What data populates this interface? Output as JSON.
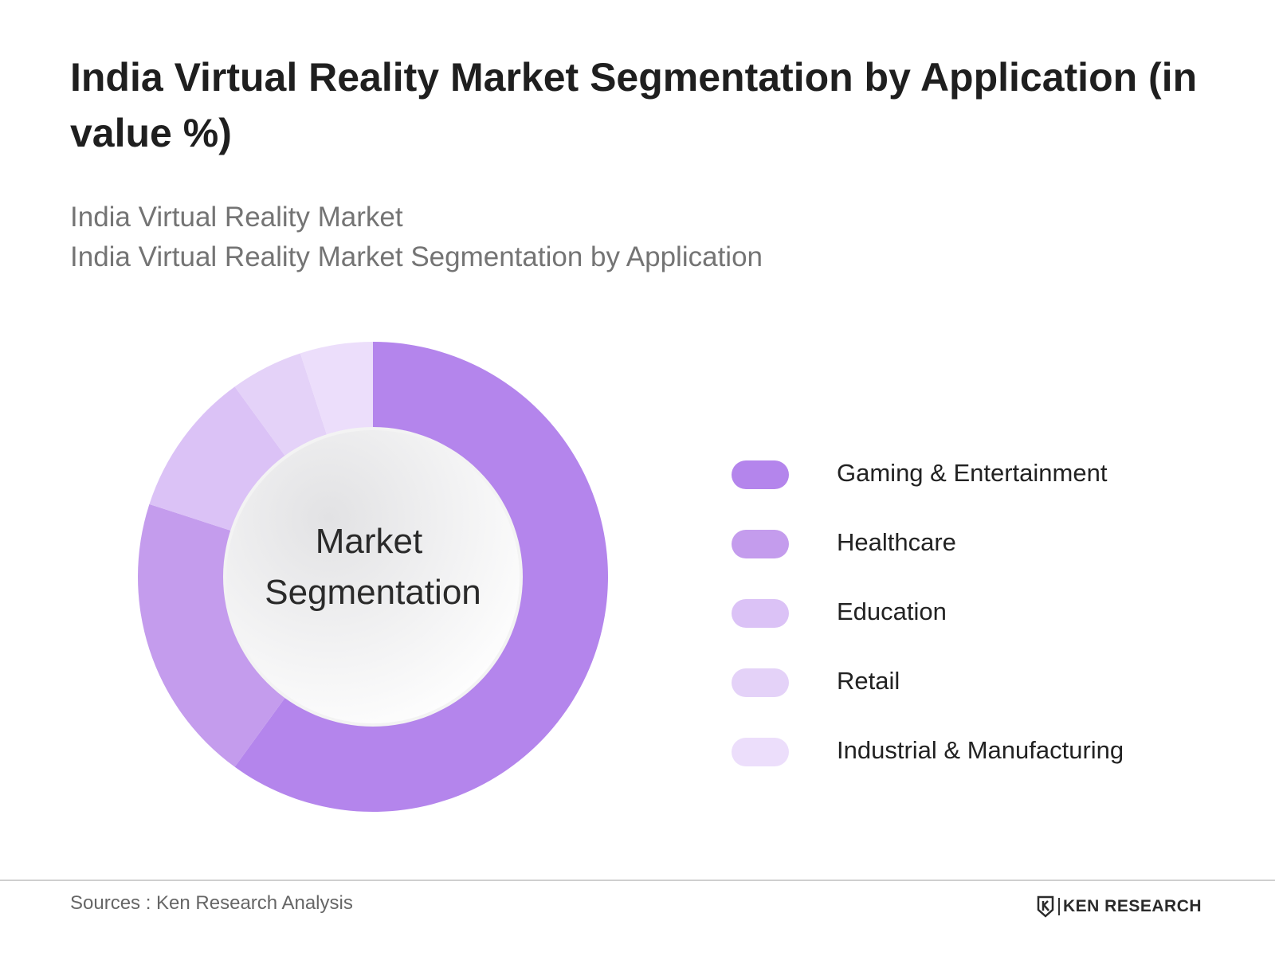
{
  "title": "India Virtual Reality Market Segmentation by Application (in value %)",
  "subtitle_line1": "India Virtual Reality Market",
  "subtitle_line2": "India Virtual Reality Market Segmentation by Application",
  "center_label_line1": "Market",
  "center_label_line2": "Segmentation",
  "sources": "Sources : Ken Research Analysis",
  "brand": "KEN RESEARCH",
  "chart_data": {
    "type": "pie",
    "title": "India Virtual Reality Market Segmentation by Application (in value %)",
    "legend_position": "right",
    "categories": [
      "Gaming & Entertainment",
      "Healthcare",
      "Education",
      "Retail",
      "Industrial & Manufacturing"
    ],
    "values": [
      60,
      20,
      10,
      5,
      5
    ],
    "colors": [
      "#b485ec",
      "#c49ced",
      "#dbc2f6",
      "#e4d2f8",
      "#ecdefb"
    ]
  }
}
